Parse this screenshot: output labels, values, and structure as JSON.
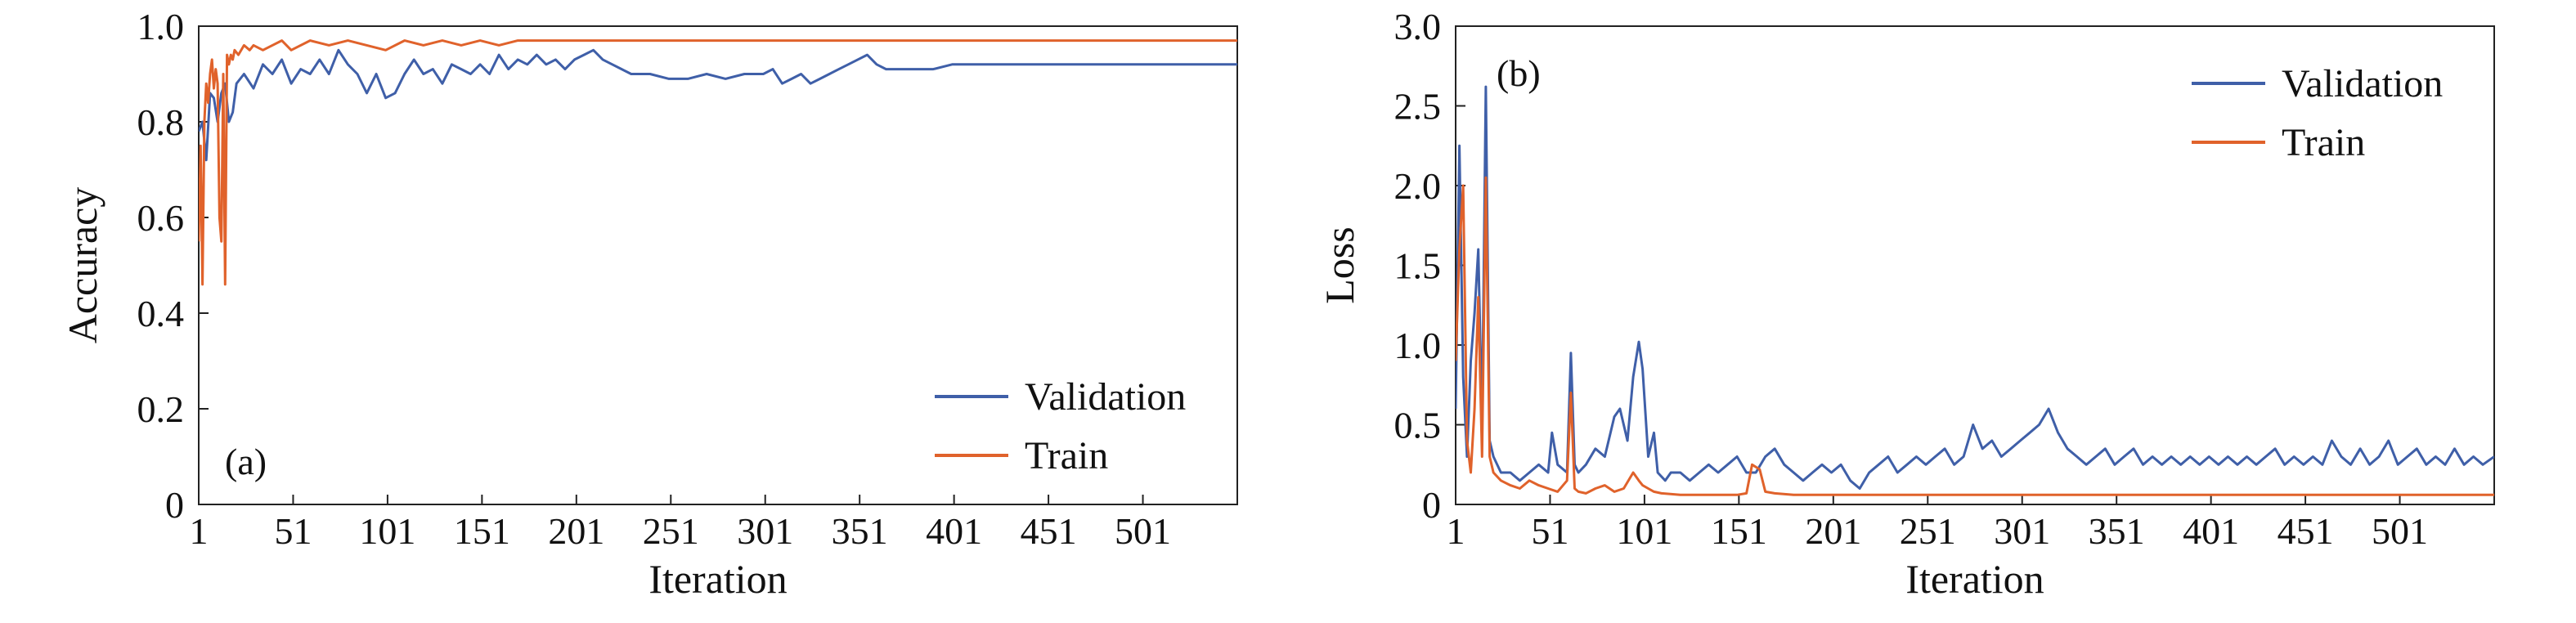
{
  "chart_data": [
    {
      "type": "line",
      "panel_label": "(a)",
      "xlabel": "Iteration",
      "ylabel": "Accuracy",
      "xlim": [
        1,
        551
      ],
      "ylim": [
        0,
        1.0
      ],
      "xticks": [
        1,
        51,
        101,
        151,
        201,
        251,
        301,
        351,
        401,
        451,
        501
      ],
      "xtick_labels": [
        "1",
        "51",
        "101",
        "151",
        "201",
        "251",
        "301",
        "351",
        "401",
        "451",
        "501"
      ],
      "yticks": [
        0,
        0.2,
        0.4,
        0.6,
        0.8,
        1.0
      ],
      "ytick_labels": [
        "0",
        "0.2",
        "0.4",
        "0.6",
        "0.8",
        "1.0"
      ],
      "legend_position": "lower-right",
      "series": [
        {
          "name": "Validation",
          "color": "#3f5fa8",
          "x": [
            1,
            3,
            5,
            7,
            9,
            11,
            13,
            15,
            17,
            19,
            21,
            25,
            30,
            35,
            40,
            45,
            50,
            55,
            60,
            65,
            70,
            75,
            80,
            85,
            90,
            95,
            100,
            105,
            110,
            115,
            120,
            125,
            130,
            135,
            140,
            145,
            150,
            155,
            160,
            165,
            170,
            175,
            180,
            185,
            190,
            195,
            200,
            205,
            210,
            215,
            220,
            225,
            230,
            240,
            250,
            260,
            270,
            280,
            290,
            300,
            305,
            310,
            315,
            320,
            325,
            330,
            335,
            340,
            345,
            350,
            355,
            360,
            365,
            370,
            380,
            390,
            400,
            420,
            450,
            480,
            510,
            551
          ],
          "y": [
            0.78,
            0.8,
            0.72,
            0.86,
            0.85,
            0.8,
            0.86,
            0.88,
            0.8,
            0.82,
            0.88,
            0.9,
            0.87,
            0.92,
            0.9,
            0.93,
            0.88,
            0.91,
            0.9,
            0.93,
            0.9,
            0.95,
            0.92,
            0.9,
            0.86,
            0.9,
            0.85,
            0.86,
            0.9,
            0.93,
            0.9,
            0.91,
            0.88,
            0.92,
            0.91,
            0.9,
            0.92,
            0.9,
            0.94,
            0.91,
            0.93,
            0.92,
            0.94,
            0.92,
            0.93,
            0.91,
            0.93,
            0.94,
            0.95,
            0.93,
            0.92,
            0.91,
            0.9,
            0.9,
            0.89,
            0.89,
            0.9,
            0.89,
            0.9,
            0.9,
            0.91,
            0.88,
            0.89,
            0.9,
            0.88,
            0.89,
            0.9,
            0.91,
            0.92,
            0.93,
            0.94,
            0.92,
            0.91,
            0.91,
            0.91,
            0.91,
            0.92,
            0.92,
            0.92,
            0.92,
            0.92,
            0.92
          ]
        },
        {
          "name": "Train",
          "color": "#e0622b",
          "x": [
            1,
            2,
            3,
            4,
            5,
            6,
            7,
            8,
            9,
            10,
            11,
            12,
            13,
            14,
            15,
            16,
            17,
            18,
            19,
            20,
            22,
            25,
            28,
            30,
            35,
            40,
            45,
            50,
            60,
            70,
            80,
            90,
            100,
            110,
            120,
            130,
            140,
            150,
            160,
            170,
            180,
            190,
            200,
            220,
            250,
            300,
            350,
            400,
            450,
            500,
            551
          ],
          "y": [
            0.55,
            0.75,
            0.46,
            0.8,
            0.88,
            0.84,
            0.9,
            0.93,
            0.87,
            0.91,
            0.88,
            0.6,
            0.55,
            0.9,
            0.46,
            0.94,
            0.92,
            0.94,
            0.93,
            0.95,
            0.94,
            0.96,
            0.95,
            0.96,
            0.95,
            0.96,
            0.97,
            0.95,
            0.97,
            0.96,
            0.97,
            0.96,
            0.95,
            0.97,
            0.96,
            0.97,
            0.96,
            0.97,
            0.96,
            0.97,
            0.97,
            0.97,
            0.97,
            0.97,
            0.97,
            0.97,
            0.97,
            0.97,
            0.97,
            0.97,
            0.97
          ]
        }
      ]
    },
    {
      "type": "line",
      "panel_label": "(b)",
      "xlabel": "Iteration",
      "ylabel": "Loss",
      "xlim": [
        1,
        551
      ],
      "ylim": [
        0,
        3.0
      ],
      "xticks": [
        1,
        51,
        101,
        151,
        201,
        251,
        301,
        351,
        401,
        451,
        501
      ],
      "xtick_labels": [
        "1",
        "51",
        "101",
        "151",
        "201",
        "251",
        "301",
        "351",
        "401",
        "451",
        "501"
      ],
      "yticks": [
        0,
        0.5,
        1.0,
        1.5,
        2.0,
        2.5,
        3.0
      ],
      "ytick_labels": [
        "0",
        "0.5",
        "1.0",
        "1.5",
        "2.0",
        "2.5",
        "3.0"
      ],
      "legend_position": "top-right",
      "series": [
        {
          "name": "Validation",
          "color": "#3f5fa8",
          "x": [
            1,
            3,
            5,
            7,
            9,
            11,
            13,
            15,
            17,
            19,
            21,
            23,
            25,
            30,
            35,
            40,
            45,
            50,
            52,
            55,
            60,
            62,
            64,
            66,
            70,
            75,
            80,
            85,
            88,
            92,
            95,
            98,
            100,
            103,
            106,
            108,
            112,
            115,
            120,
            125,
            130,
            135,
            140,
            145,
            150,
            155,
            160,
            165,
            170,
            175,
            180,
            185,
            190,
            195,
            200,
            205,
            210,
            215,
            220,
            225,
            230,
            235,
            240,
            245,
            250,
            255,
            260,
            265,
            270,
            275,
            280,
            285,
            290,
            295,
            300,
            305,
            310,
            315,
            320,
            325,
            330,
            335,
            340,
            345,
            350,
            355,
            360,
            365,
            370,
            375,
            380,
            385,
            390,
            395,
            400,
            405,
            410,
            415,
            420,
            425,
            430,
            435,
            440,
            445,
            450,
            455,
            460,
            465,
            470,
            475,
            480,
            485,
            490,
            495,
            500,
            505,
            510,
            515,
            520,
            525,
            530,
            535,
            540,
            545,
            551
          ],
          "y": [
            0.6,
            2.25,
            0.8,
            0.3,
            0.9,
            1.2,
            1.6,
            0.5,
            2.62,
            0.4,
            0.3,
            0.25,
            0.2,
            0.2,
            0.15,
            0.2,
            0.25,
            0.2,
            0.45,
            0.25,
            0.2,
            0.95,
            0.25,
            0.2,
            0.25,
            0.35,
            0.3,
            0.55,
            0.6,
            0.4,
            0.8,
            1.02,
            0.85,
            0.3,
            0.45,
            0.2,
            0.15,
            0.2,
            0.2,
            0.15,
            0.2,
            0.25,
            0.2,
            0.25,
            0.3,
            0.2,
            0.2,
            0.3,
            0.35,
            0.25,
            0.2,
            0.15,
            0.2,
            0.25,
            0.2,
            0.25,
            0.15,
            0.1,
            0.2,
            0.25,
            0.3,
            0.2,
            0.25,
            0.3,
            0.25,
            0.3,
            0.35,
            0.25,
            0.3,
            0.5,
            0.35,
            0.4,
            0.3,
            0.35,
            0.4,
            0.45,
            0.5,
            0.6,
            0.45,
            0.35,
            0.3,
            0.25,
            0.3,
            0.35,
            0.25,
            0.3,
            0.35,
            0.25,
            0.3,
            0.25,
            0.3,
            0.25,
            0.3,
            0.25,
            0.3,
            0.25,
            0.3,
            0.25,
            0.3,
            0.25,
            0.3,
            0.35,
            0.25,
            0.3,
            0.25,
            0.3,
            0.25,
            0.4,
            0.3,
            0.25,
            0.35,
            0.25,
            0.3,
            0.4,
            0.25,
            0.3,
            0.35,
            0.25,
            0.3,
            0.25,
            0.35,
            0.25,
            0.3,
            0.25,
            0.3
          ]
        },
        {
          "name": "Train",
          "color": "#e0622b",
          "x": [
            1,
            3,
            5,
            7,
            9,
            11,
            13,
            15,
            17,
            19,
            21,
            25,
            30,
            35,
            40,
            45,
            50,
            55,
            60,
            62,
            64,
            66,
            70,
            75,
            80,
            85,
            90,
            95,
            98,
            100,
            103,
            106,
            110,
            120,
            130,
            140,
            150,
            155,
            158,
            162,
            165,
            170,
            180,
            190,
            200,
            250,
            300,
            350,
            400,
            450,
            500,
            551
          ],
          "y": [
            0.9,
            1.6,
            2.0,
            0.4,
            0.2,
            0.6,
            1.3,
            0.3,
            2.05,
            0.3,
            0.2,
            0.15,
            0.12,
            0.1,
            0.15,
            0.12,
            0.1,
            0.08,
            0.15,
            0.7,
            0.1,
            0.08,
            0.07,
            0.1,
            0.12,
            0.08,
            0.1,
            0.2,
            0.15,
            0.12,
            0.1,
            0.08,
            0.07,
            0.06,
            0.06,
            0.06,
            0.06,
            0.07,
            0.25,
            0.22,
            0.08,
            0.07,
            0.06,
            0.06,
            0.06,
            0.06,
            0.06,
            0.06,
            0.06,
            0.06,
            0.06,
            0.06
          ]
        }
      ]
    }
  ]
}
